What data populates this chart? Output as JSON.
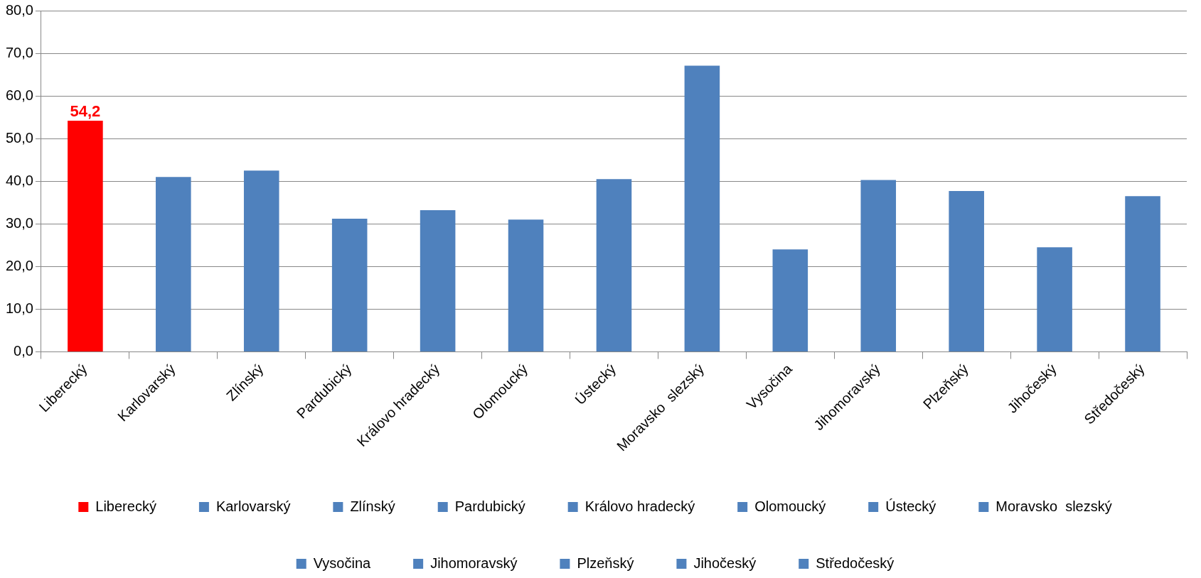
{
  "chart_data": {
    "type": "bar",
    "categories": [
      "Liberecký",
      "Karlovarský",
      "Zlínský",
      "Pardubický",
      "Královo hradecký",
      "Olomoucký",
      "Ústecký",
      "Moravsko  slezský",
      "Vysočina",
      "Jihomoravský",
      "Plzeňský",
      "Jihočeský",
      "Středočeský"
    ],
    "series": [
      {
        "name": "Liberecký",
        "color": "#ff0000",
        "values": [
          54.2,
          null,
          null,
          null,
          null,
          null,
          null,
          null,
          null,
          null,
          null,
          null,
          null
        ],
        "value_labels": [
          "54,2",
          null,
          null,
          null,
          null,
          null,
          null,
          null,
          null,
          null,
          null,
          null,
          null
        ]
      },
      {
        "name": "Karlovarský",
        "color": "#4f81bd",
        "values": [
          null,
          41.0,
          null,
          null,
          null,
          null,
          null,
          null,
          null,
          null,
          null,
          null,
          null
        ]
      },
      {
        "name": "Zlínský",
        "color": "#4f81bd",
        "values": [
          null,
          null,
          42.5,
          null,
          null,
          null,
          null,
          null,
          null,
          null,
          null,
          null,
          null
        ]
      },
      {
        "name": "Pardubický",
        "color": "#4f81bd",
        "values": [
          null,
          null,
          null,
          31.2,
          null,
          null,
          null,
          null,
          null,
          null,
          null,
          null,
          null
        ]
      },
      {
        "name": "Královo hradecký",
        "color": "#4f81bd",
        "values": [
          null,
          null,
          null,
          null,
          33.2,
          null,
          null,
          null,
          null,
          null,
          null,
          null,
          null
        ]
      },
      {
        "name": "Olomoucký",
        "color": "#4f81bd",
        "values": [
          null,
          null,
          null,
          null,
          null,
          31.0,
          null,
          null,
          null,
          null,
          null,
          null,
          null
        ]
      },
      {
        "name": "Ústecký",
        "color": "#4f81bd",
        "values": [
          null,
          null,
          null,
          null,
          null,
          null,
          40.5,
          null,
          null,
          null,
          null,
          null,
          null
        ]
      },
      {
        "name": "Moravsko  slezský",
        "color": "#4f81bd",
        "values": [
          null,
          null,
          null,
          null,
          null,
          null,
          null,
          67.1,
          null,
          null,
          null,
          null,
          null
        ]
      },
      {
        "name": "Vysočina",
        "color": "#4f81bd",
        "values": [
          null,
          null,
          null,
          null,
          null,
          null,
          null,
          null,
          24.0,
          null,
          null,
          null,
          null
        ]
      },
      {
        "name": "Jihomoravský",
        "color": "#4f81bd",
        "values": [
          null,
          null,
          null,
          null,
          null,
          null,
          null,
          null,
          null,
          40.3,
          null,
          null,
          null
        ]
      },
      {
        "name": "Plzeňský",
        "color": "#4f81bd",
        "values": [
          null,
          null,
          null,
          null,
          null,
          null,
          null,
          null,
          null,
          null,
          37.7,
          null,
          null
        ]
      },
      {
        "name": "Jihočeský",
        "color": "#4f81bd",
        "values": [
          null,
          null,
          null,
          null,
          null,
          null,
          null,
          null,
          null,
          null,
          null,
          24.5,
          null
        ]
      },
      {
        "name": "Středočeský",
        "color": "#4f81bd",
        "values": [
          null,
          null,
          null,
          null,
          null,
          null,
          null,
          null,
          null,
          null,
          null,
          null,
          36.5
        ]
      }
    ],
    "ylim": [
      0,
      80
    ],
    "yticks": [
      {
        "value": 0,
        "label": "0,0"
      },
      {
        "value": 10,
        "label": "10,0"
      },
      {
        "value": 20,
        "label": "20,0"
      },
      {
        "value": 30,
        "label": "30,0"
      },
      {
        "value": 40,
        "label": "40,0"
      },
      {
        "value": 50,
        "label": "50,0"
      },
      {
        "value": 60,
        "label": "60,0"
      },
      {
        "value": 70,
        "label": "70,0"
      },
      {
        "value": 80,
        "label": "80,0"
      }
    ],
    "grid": "y",
    "legend": "bottom"
  }
}
